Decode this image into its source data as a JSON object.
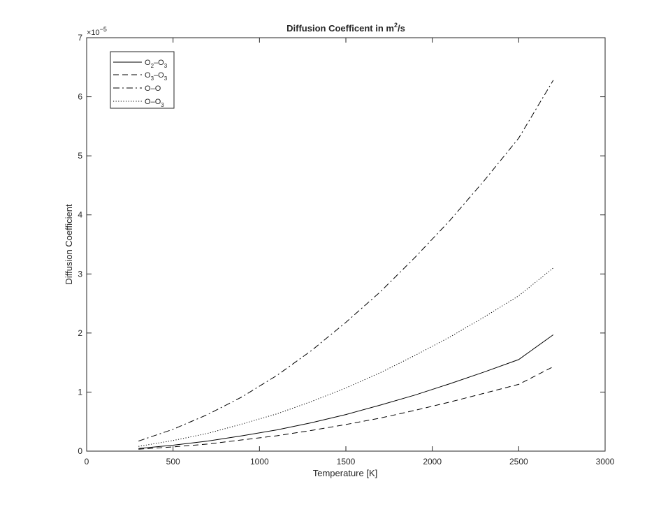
{
  "chart_data": {
    "type": "line",
    "title": "Diffusion Coefficent in m",
    "title_superscript": "2",
    "title_suffix": "/s",
    "xlabel": "Temperature [K]",
    "ylabel": "Diffusion Coefficient",
    "y_exponent_base": "×10",
    "y_exponent_power": "−5",
    "xlim": [
      0,
      3000
    ],
    "ylim": [
      0,
      7
    ],
    "xticks": [
      0,
      500,
      1000,
      1500,
      2000,
      2500,
      3000
    ],
    "yticks": [
      0,
      1,
      2,
      3,
      4,
      5,
      6,
      7
    ],
    "grid": false,
    "legend_position": "top-left",
    "x": [
      300,
      500,
      700,
      900,
      1100,
      1300,
      1500,
      1700,
      1900,
      2100,
      2300,
      2500,
      2700
    ],
    "series": [
      {
        "name": "O2-O3",
        "legend": {
          "a": "O",
          "a_sub": "2",
          "sep": "–",
          "b": "O",
          "b_sub": "3"
        },
        "style": "solid",
        "values": [
          0.045,
          0.1,
          0.17,
          0.26,
          0.36,
          0.48,
          0.62,
          0.78,
          0.95,
          1.14,
          1.34,
          1.55,
          1.97
        ]
      },
      {
        "name": "O3-O3",
        "legend": {
          "a": "O",
          "a_sub": "3",
          "sep": "–",
          "b": "O",
          "b_sub": "3"
        },
        "style": "dashed",
        "values": [
          0.033,
          0.072,
          0.12,
          0.19,
          0.26,
          0.35,
          0.45,
          0.56,
          0.69,
          0.83,
          0.98,
          1.13,
          1.43
        ]
      },
      {
        "name": "O-O",
        "legend": {
          "a": "O",
          "a_sub": "",
          "sep": "–",
          "b": "O",
          "b_sub": ""
        },
        "style": "dashdot",
        "values": [
          0.17,
          0.37,
          0.62,
          0.92,
          1.28,
          1.7,
          2.18,
          2.7,
          3.28,
          3.9,
          4.58,
          5.3,
          6.28
        ]
      },
      {
        "name": "O-O3",
        "legend": {
          "a": "O",
          "a_sub": "",
          "sep": "–",
          "b": "O",
          "b_sub": "3"
        },
        "style": "dotted",
        "values": [
          0.08,
          0.18,
          0.3,
          0.46,
          0.63,
          0.84,
          1.07,
          1.33,
          1.62,
          1.93,
          2.27,
          2.63,
          3.1
        ]
      }
    ]
  },
  "colors": {
    "line": "#000000",
    "axis": "#262626",
    "background": "#ffffff"
  }
}
